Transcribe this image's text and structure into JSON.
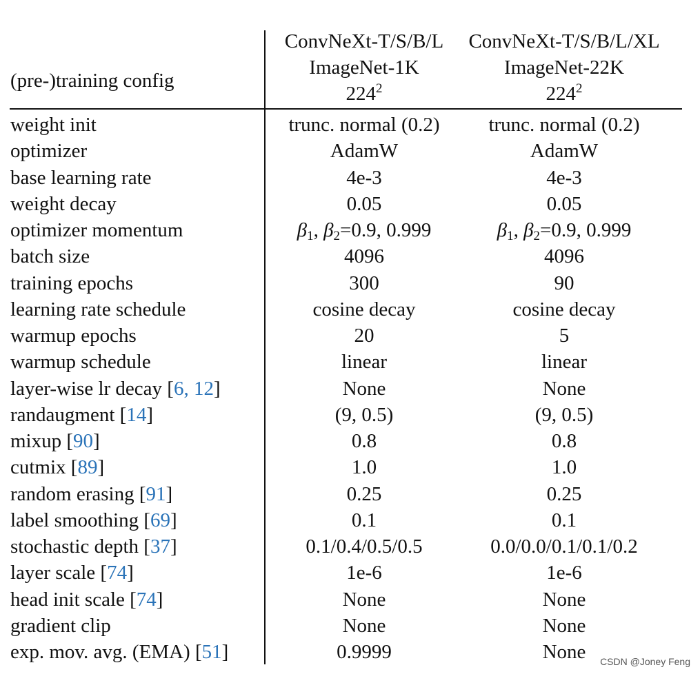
{
  "header": {
    "config_label": "(pre-)training config",
    "col1": {
      "model": "ConvNeXt-T/S/B/L",
      "dataset": "ImageNet-1K",
      "res_base": "224",
      "res_exp": "2"
    },
    "col2": {
      "model": "ConvNeXt-T/S/B/L/XL",
      "dataset": "ImageNet-22K",
      "res_base": "224",
      "res_exp": "2"
    }
  },
  "rows": [
    {
      "label": "weight init",
      "cite": "",
      "v1": "trunc. normal (0.2)",
      "v2": "trunc. normal (0.2)"
    },
    {
      "label": "optimizer",
      "cite": "",
      "v1": "AdamW",
      "v2": "AdamW"
    },
    {
      "label": "base learning rate",
      "cite": "",
      "v1": "4e-3",
      "v2": "4e-3"
    },
    {
      "label": "weight decay",
      "cite": "",
      "v1": "0.05",
      "v2": "0.05"
    },
    {
      "label": "optimizer momentum",
      "cite": "",
      "v1": "β1, β2=0.9, 0.999",
      "v2": "β1, β2=0.9, 0.999"
    },
    {
      "label": "batch size",
      "cite": "",
      "v1": "4096",
      "v2": "4096"
    },
    {
      "label": "training epochs",
      "cite": "",
      "v1": "300",
      "v2": "90"
    },
    {
      "label": "learning rate schedule",
      "cite": "",
      "v1": "cosine decay",
      "v2": "cosine decay"
    },
    {
      "label": "warmup epochs",
      "cite": "",
      "v1": "20",
      "v2": "5"
    },
    {
      "label": "warmup schedule",
      "cite": "",
      "v1": "linear",
      "v2": "linear"
    },
    {
      "label": "layer-wise lr decay",
      "cite": "6, 12",
      "v1": "None",
      "v2": "None"
    },
    {
      "label": "randaugment",
      "cite": "14",
      "v1": "(9, 0.5)",
      "v2": "(9, 0.5)"
    },
    {
      "label": "mixup",
      "cite": "90",
      "v1": "0.8",
      "v2": "0.8"
    },
    {
      "label": "cutmix",
      "cite": "89",
      "v1": "1.0",
      "v2": "1.0"
    },
    {
      "label": "random erasing",
      "cite": "91",
      "v1": "0.25",
      "v2": "0.25"
    },
    {
      "label": "label smoothing",
      "cite": "69",
      "v1": "0.1",
      "v2": "0.1"
    },
    {
      "label": "stochastic depth",
      "cite": "37",
      "v1": "0.1/0.4/0.5/0.5",
      "v2": "0.0/0.0/0.1/0.1/0.2"
    },
    {
      "label": "layer scale",
      "cite": "74",
      "v1": "1e-6",
      "v2": "1e-6"
    },
    {
      "label": "head init scale",
      "cite": "74",
      "v1": "None",
      "v2": "None"
    },
    {
      "label": "gradient clip",
      "cite": "",
      "v1": "None",
      "v2": "None"
    },
    {
      "label": "exp. mov. avg. (EMA)",
      "cite": "51",
      "v1": "0.9999",
      "v2": "None"
    }
  ],
  "watermark": "CSDN @Joney Feng"
}
